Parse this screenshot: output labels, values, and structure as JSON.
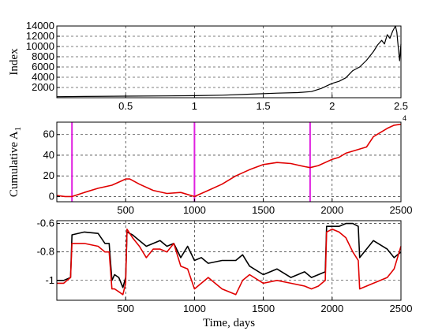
{
  "chart_data": [
    {
      "type": "line",
      "ylabel": "Index",
      "xlim": [
        0,
        2.5
      ],
      "ylim": [
        0,
        14000
      ],
      "xticks": [
        "0.5",
        "1",
        "1.5",
        "2",
        "2.5"
      ],
      "xtick_values": [
        0.5,
        1,
        1.5,
        2,
        2.5
      ],
      "yticks": [
        "2000",
        "4000",
        "6000",
        "8000",
        "10000",
        "12000",
        "14000"
      ],
      "ytick_values": [
        2000,
        4000,
        6000,
        8000,
        10000,
        12000,
        14000
      ],
      "grid": true,
      "series": [
        {
          "color": "#000000",
          "x": [
            0,
            0.2,
            0.5,
            0.8,
            1.0,
            1.2,
            1.4,
            1.6,
            1.75,
            1.85,
            1.92,
            2.0,
            2.05,
            2.1,
            2.15,
            2.2,
            2.25,
            2.3,
            2.33,
            2.36,
            2.38,
            2.4,
            2.42,
            2.44,
            2.46,
            2.47,
            2.48,
            2.49,
            2.5
          ],
          "y": [
            200,
            250,
            300,
            350,
            400,
            500,
            700,
            900,
            1000,
            1200,
            1800,
            2800,
            3200,
            3900,
            5300,
            6000,
            7300,
            9000,
            10300,
            11200,
            10500,
            12300,
            11600,
            13000,
            14000,
            12800,
            10000,
            7200,
            10500
          ]
        }
      ]
    },
    {
      "type": "line",
      "ylabel": "Cumulative A",
      "ylabel_subscript": "1",
      "corner_note": "4",
      "xlim": [
        0,
        2500
      ],
      "ylim": [
        -5,
        72
      ],
      "xticks": [
        "500",
        "1000",
        "1500",
        "2000",
        "2500"
      ],
      "xtick_values": [
        500,
        1000,
        1500,
        2000,
        2500
      ],
      "yticks": [
        "0",
        "20",
        "40",
        "60"
      ],
      "ytick_values": [
        0,
        20,
        40,
        60
      ],
      "grid": true,
      "vertical_markers": [
        110,
        1000,
        1840
      ],
      "marker_color": "#e020e0",
      "series": [
        {
          "color": "#e00000",
          "x": [
            0,
            60,
            110,
            200,
            300,
            400,
            450,
            500,
            530,
            600,
            700,
            800,
            900,
            1000,
            1100,
            1200,
            1300,
            1400,
            1500,
            1600,
            1700,
            1800,
            1840,
            1900,
            2000,
            2050,
            2100,
            2200,
            2250,
            2300,
            2400,
            2450,
            2500
          ],
          "y": [
            1,
            0,
            0,
            4,
            8,
            11,
            14,
            17,
            17,
            12,
            6,
            3,
            4,
            0,
            6,
            12,
            20,
            26,
            31,
            33,
            32,
            29,
            28,
            30,
            36,
            38,
            42,
            46,
            48,
            58,
            66,
            69,
            70
          ]
        }
      ]
    },
    {
      "type": "line",
      "xlabel": "Time, days",
      "xlim": [
        0,
        2500
      ],
      "ylim": [
        -1.14,
        -0.58
      ],
      "xticks": [
        "500",
        "1000",
        "1500",
        "2000",
        "2500"
      ],
      "xtick_values": [
        500,
        1000,
        1500,
        2000,
        2500
      ],
      "yticks": [
        "-0.6",
        "-0.8",
        "-1"
      ],
      "ytick_values": [
        -0.6,
        -0.8,
        -1
      ],
      "grid": true,
      "series": [
        {
          "color": "#000000",
          "x": [
            0,
            50,
            100,
            110,
            200,
            300,
            350,
            380,
            400,
            420,
            450,
            480,
            500,
            510,
            550,
            600,
            650,
            700,
            750,
            800,
            850,
            900,
            950,
            1000,
            1050,
            1100,
            1200,
            1300,
            1350,
            1400,
            1500,
            1600,
            1700,
            1800,
            1850,
            1900,
            1950,
            1960,
            2000,
            2050,
            2100,
            2150,
            2190,
            2200,
            2300,
            2400,
            2450,
            2500
          ],
          "y": [
            -1.0,
            -1.0,
            -0.98,
            -0.68,
            -0.66,
            -0.67,
            -0.74,
            -0.74,
            -1.0,
            -0.96,
            -0.98,
            -1.05,
            -0.98,
            -0.66,
            -0.68,
            -0.72,
            -0.76,
            -0.74,
            -0.72,
            -0.76,
            -0.74,
            -0.84,
            -0.76,
            -0.86,
            -0.84,
            -0.88,
            -0.86,
            -0.86,
            -0.82,
            -0.9,
            -0.96,
            -0.92,
            -0.98,
            -0.94,
            -0.98,
            -0.96,
            -0.94,
            -0.62,
            -0.62,
            -0.62,
            -0.6,
            -0.6,
            -0.62,
            -0.84,
            -0.72,
            -0.78,
            -0.84,
            -0.8
          ]
        },
        {
          "color": "#e00000",
          "x": [
            0,
            50,
            100,
            110,
            200,
            300,
            350,
            380,
            400,
            420,
            450,
            480,
            500,
            510,
            550,
            600,
            650,
            700,
            750,
            800,
            850,
            900,
            950,
            1000,
            1050,
            1100,
            1200,
            1300,
            1350,
            1400,
            1500,
            1600,
            1700,
            1800,
            1850,
            1900,
            1950,
            1960,
            2000,
            2050,
            2100,
            2150,
            2190,
            2200,
            2300,
            2400,
            2450,
            2500
          ],
          "y": [
            -1.02,
            -1.02,
            -0.98,
            -0.74,
            -0.74,
            -0.76,
            -0.8,
            -0.8,
            -1.06,
            -1.06,
            -1.08,
            -1.1,
            -1.02,
            -0.64,
            -0.7,
            -0.76,
            -0.84,
            -0.78,
            -0.78,
            -0.8,
            -0.74,
            -0.9,
            -0.92,
            -1.06,
            -1.02,
            -0.98,
            -1.06,
            -1.1,
            -1.0,
            -0.96,
            -1.02,
            -1.0,
            -1.02,
            -1.04,
            -1.06,
            -1.04,
            -1.0,
            -0.66,
            -0.64,
            -0.66,
            -0.7,
            -0.8,
            -0.86,
            -1.06,
            -1.02,
            -0.98,
            -0.92,
            -0.76
          ]
        }
      ]
    }
  ]
}
